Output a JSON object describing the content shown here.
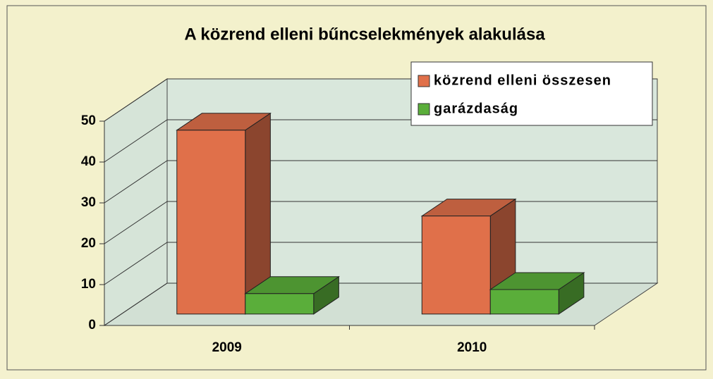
{
  "chart_data": {
    "type": "bar3d",
    "title": "A közrend elleni bűncselekmények alakulása",
    "categories": [
      "2009",
      "2010"
    ],
    "series": [
      {
        "name": "közrend elleni összesen",
        "color": "#e0704a",
        "values": [
          45,
          24
        ]
      },
      {
        "name": "garázdaság",
        "color": "#5aae3a",
        "values": [
          5,
          6
        ]
      }
    ],
    "ylim": [
      0,
      50
    ],
    "yticks": [
      0,
      10,
      20,
      30,
      40,
      50
    ],
    "grid": true,
    "legend": "top-right"
  }
}
